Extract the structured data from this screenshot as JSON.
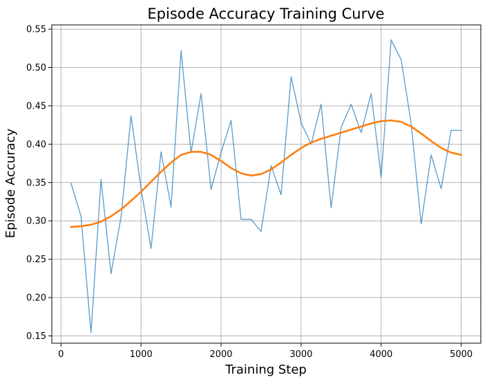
{
  "chart_data": {
    "type": "line",
    "title": "Episode Accuracy Training Curve",
    "xlabel": "Training Step",
    "ylabel": "Episode Accuracy",
    "xlim": [
      -115,
      5245
    ],
    "ylim": [
      0.1405,
      0.5555
    ],
    "x_ticks": [
      0,
      1000,
      2000,
      3000,
      4000,
      5000
    ],
    "x_tick_labels": [
      "0",
      "1000",
      "2000",
      "3000",
      "4000",
      "5000"
    ],
    "y_ticks": [
      0.15,
      0.2,
      0.25,
      0.3,
      0.35,
      0.4,
      0.45,
      0.5,
      0.55
    ],
    "y_tick_labels": [
      "0.15",
      "0.20",
      "0.25",
      "0.30",
      "0.35",
      "0.40",
      "0.45",
      "0.50",
      "0.55"
    ],
    "grid": true,
    "legend": "none",
    "series": [
      {
        "color": "#1f77b4",
        "opacity": 0.7,
        "style": "thin",
        "x": [
          125,
          250,
          375,
          500,
          625,
          750,
          875,
          1000,
          1125,
          1250,
          1375,
          1500,
          1625,
          1750,
          1875,
          2000,
          2125,
          2250,
          2375,
          2500,
          2625,
          2750,
          2875,
          3000,
          3125,
          3250,
          3375,
          3500,
          3625,
          3750,
          3875,
          4000,
          4125,
          4250,
          4375,
          4500,
          4625,
          4750,
          4875,
          5000
        ],
        "y": [
          0.349,
          0.306,
          0.154,
          0.354,
          0.231,
          0.305,
          0.437,
          0.342,
          0.264,
          0.39,
          0.318,
          0.522,
          0.389,
          0.466,
          0.341,
          0.389,
          0.431,
          0.302,
          0.302,
          0.286,
          0.372,
          0.334,
          0.488,
          0.428,
          0.4,
          0.452,
          0.317,
          0.422,
          0.452,
          0.415,
          0.466,
          0.357,
          0.536,
          0.51,
          0.427,
          0.296,
          0.386,
          0.342,
          0.418,
          0.418
        ]
      },
      {
        "color": "#ff7f0e",
        "opacity": 1,
        "style": "thick",
        "x": [
          125,
          250,
          375,
          500,
          625,
          750,
          875,
          1000,
          1125,
          1250,
          1375,
          1500,
          1625,
          1750,
          1875,
          2000,
          2125,
          2250,
          2375,
          2500,
          2625,
          2750,
          2875,
          3000,
          3125,
          3250,
          3375,
          3500,
          3625,
          3750,
          3875,
          4000,
          4125,
          4250,
          4375,
          4500,
          4625,
          4750,
          4875,
          5000
        ],
        "y": [
          0.292,
          0.293,
          0.295,
          0.299,
          0.306,
          0.315,
          0.326,
          0.338,
          0.351,
          0.364,
          0.376,
          0.386,
          0.39,
          0.39,
          0.386,
          0.378,
          0.369,
          0.362,
          0.359,
          0.361,
          0.367,
          0.376,
          0.386,
          0.395,
          0.402,
          0.407,
          0.411,
          0.415,
          0.419,
          0.423,
          0.427,
          0.43,
          0.431,
          0.429,
          0.423,
          0.414,
          0.404,
          0.395,
          0.389,
          0.386
        ]
      }
    ]
  }
}
